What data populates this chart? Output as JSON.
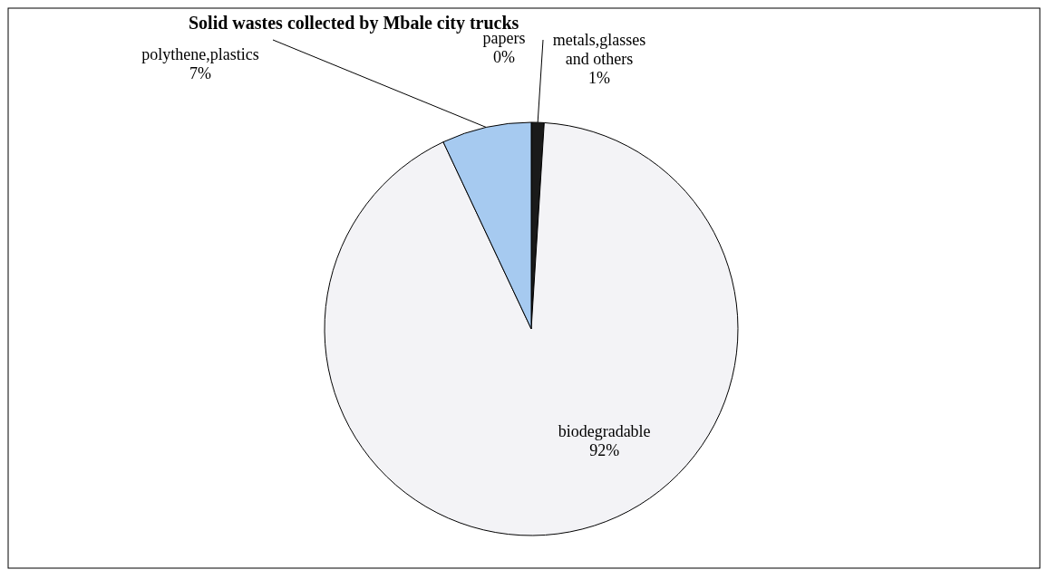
{
  "chart_data": {
    "type": "pie",
    "title": "Solid wastes collected by Mbale city trucks",
    "categories": [
      "papers",
      "metals,glasses and others",
      "biodegradable",
      "polythene,plastics"
    ],
    "values": [
      0,
      1,
      92,
      7
    ],
    "colors": [
      "#ffffff",
      "#1a1a1a",
      "#f3f3f6",
      "#a6caf0"
    ],
    "value_labels": [
      "0%",
      "1%",
      "92%",
      "7%"
    ]
  }
}
